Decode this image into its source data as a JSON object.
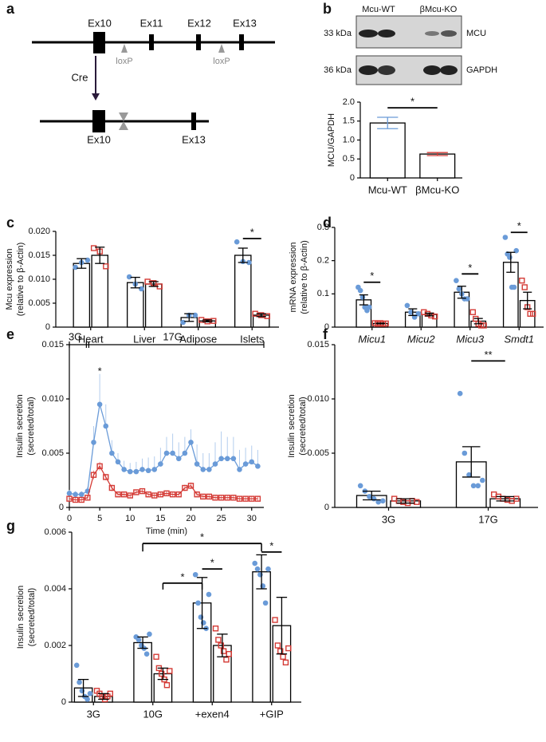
{
  "diagram": {
    "panel": "a",
    "exons_top": [
      "Ex10",
      "Ex11",
      "Ex12",
      "Ex13"
    ],
    "loxp": [
      "loxP",
      "loxP"
    ],
    "cre": "Cre",
    "exons_bottom": [
      "Ex10",
      "Ex13"
    ]
  },
  "blot": {
    "panel": "b",
    "lanes": [
      "Mcu-WT",
      "βMcu-KO"
    ],
    "bands": [
      {
        "size": "33 kDa",
        "protein": "MCU"
      },
      {
        "size": "36 kDa",
        "protein": "GAPDH"
      }
    ]
  },
  "chart_data": [
    {
      "type": "bar",
      "ylabel": [
        "MCU/GAPDH"
      ],
      "categories": [
        "Mcu-WT",
        "βMcu-KO"
      ],
      "series": [
        {
          "colors": [
            "#6a9bd8",
            "#d43b36"
          ],
          "values": [
            1.45,
            0.63
          ],
          "errors": [
            0.15,
            0.04
          ]
        }
      ],
      "ylim": [
        0,
        2
      ],
      "yticks": [
        0,
        0.5,
        {
          "value": 1,
          "label": "1.0"
        },
        1.5,
        {
          "value": 2,
          "label": "2.0"
        }
      ],
      "annotations": [
        "*"
      ]
    },
    {
      "type": "bar",
      "panel": "c",
      "ylabel": [
        "Mcu expression",
        "(relative to β-Actin)"
      ],
      "categories": [
        "Heart",
        "Liver",
        "Adipose",
        "Islets"
      ],
      "series": [
        {
          "color": "#6a9bd8",
          "marker": "circle",
          "values": [
            0.0133,
            0.0093,
            0.002,
            0.015
          ],
          "errors": [
            0.001,
            0.0011,
            0.0008,
            0.0015
          ],
          "points": [
            [
              0.0125,
              0.0135,
              0.014
            ],
            [
              0.0105,
              0.009,
              0.008
            ],
            [
              0.001,
              0.0025,
              0.0025
            ],
            [
              0.0178,
              0.0137,
              0.0135
            ]
          ]
        },
        {
          "color": "#d43b36",
          "marker": "square",
          "values": [
            0.015,
            0.009,
            0.0013,
            0.0025
          ],
          "errors": [
            0.0017,
            0.0005,
            0.0002,
            0.0003
          ],
          "points": [
            [
              0.0165,
              0.0158,
              0.0127
            ],
            [
              0.0095,
              0.0092,
              0.0085
            ],
            [
              0.0015,
              0.0012,
              0.0013
            ],
            [
              0.0028,
              0.0025,
              0.0023
            ]
          ]
        }
      ],
      "ylim": [
        0,
        0.02
      ],
      "yticks": [
        0,
        0.005,
        {
          "value": 0.01,
          "label": "0.010"
        },
        0.015,
        {
          "value": 0.02,
          "label": "0.020"
        }
      ],
      "annotations": [
        "*"
      ]
    },
    {
      "type": "bar",
      "panel": "d",
      "italic_categories": true,
      "ylabel": [
        "mRNA expression",
        "(relative to β-Actin)"
      ],
      "categories": [
        "Micu1",
        "Micu2",
        "Micu3",
        "Smdt1"
      ],
      "series": [
        {
          "color": "#6a9bd8",
          "marker": "circle",
          "values": [
            0.082,
            0.045,
            0.105,
            0.195
          ],
          "errors": [
            0.015,
            0.01,
            0.018,
            0.03
          ],
          "points": [
            [
              0.12,
              0.11,
              0.09,
              0.06,
              0.05,
              0.06
            ],
            [
              0.065,
              0.045,
              0.03,
              0.04
            ],
            [
              0.14,
              0.115,
              0.1,
              0.085,
              0.085
            ],
            [
              0.27,
              0.22,
              0.21,
              0.12,
              0.12,
              0.23
            ]
          ]
        },
        {
          "color": "#d43b36",
          "marker": "square",
          "values": [
            0.011,
            0.038,
            0.018,
            0.08
          ],
          "errors": [
            0.001,
            0.004,
            0.008,
            0.025
          ],
          "points": [
            [
              0.012,
              0.01,
              0.012,
              0.01,
              0.011
            ],
            [
              0.045,
              0.04,
              0.035,
              0.032
            ],
            [
              0.045,
              0.025,
              0.01,
              0.005,
              0.005
            ],
            [
              0.14,
              0.12,
              0.06,
              0.04,
              0.04
            ]
          ]
        }
      ],
      "ylim": [
        0,
        0.3
      ],
      "yticks": [
        0,
        0.1,
        0.2,
        0.3
      ],
      "annotations": [
        "*",
        "*",
        "*"
      ]
    },
    {
      "type": "line",
      "panel": "e",
      "ylabel": [
        "Insulin secretion",
        "(secreted/total)"
      ],
      "xlabel": "Time (min)",
      "x": [
        0,
        1,
        2,
        3,
        4,
        5,
        6,
        7,
        8,
        9,
        10,
        11,
        12,
        13,
        14,
        15,
        16,
        17,
        18,
        19,
        20,
        21,
        22,
        23,
        24,
        25,
        26,
        27,
        28,
        29,
        30,
        31
      ],
      "series": [
        {
          "color": "#6a9bd8",
          "error_color": "#b3cdee",
          "marker": "circle",
          "values": [
            0.0013,
            0.0012,
            0.0012,
            0.0015,
            0.006,
            0.0095,
            0.0075,
            0.005,
            0.0042,
            0.0035,
            0.0033,
            0.0033,
            0.0035,
            0.0034,
            0.0035,
            0.004,
            0.005,
            0.005,
            0.0045,
            0.005,
            0.006,
            0.004,
            0.0035,
            0.0035,
            0.004,
            0.0045,
            0.0045,
            0.0045,
            0.0035,
            0.004,
            0.0042,
            0.0038
          ],
          "errors": [
            0.0003,
            0.0003,
            0.0003,
            0.0004,
            0.0015,
            0.0028,
            0.002,
            0.0012,
            0.0008,
            0.0008,
            0.0008,
            0.0009,
            0.001,
            0.0012,
            0.0012,
            0.0015,
            0.0015,
            0.0018,
            0.0015,
            0.0015,
            0.0012,
            0.0018,
            0.0015,
            0.0015,
            0.002,
            0.0025,
            0.002,
            0.002,
            0.0018,
            0.0015,
            0.0015,
            0.0015
          ]
        },
        {
          "color": "#d43b36",
          "error_color": "#e98f8b",
          "marker": "square",
          "values": [
            0.0008,
            0.0007,
            0.0007,
            0.0009,
            0.003,
            0.0038,
            0.0028,
            0.0018,
            0.0012,
            0.0012,
            0.0011,
            0.0014,
            0.0015,
            0.0012,
            0.0011,
            0.0012,
            0.0013,
            0.0012,
            0.0012,
            0.0018,
            0.002,
            0.0012,
            0.001,
            0.001,
            0.0009,
            0.0009,
            0.0009,
            0.0009,
            0.0008,
            0.0008,
            0.0008,
            0.0008
          ],
          "errors": [
            0.0002,
            0.0002,
            0.0002,
            0.0002,
            0.0004,
            0.0004,
            0.0003,
            0.0003,
            0.0002,
            0.0002,
            0.0002,
            0.0002,
            0.0002,
            0.0002,
            0.0002,
            0.0002,
            0.0002,
            0.0002,
            0.0002,
            0.0003,
            0.0003,
            0.0002,
            0.0002,
            0.0002,
            0.0002,
            0.0002,
            0.0002,
            0.0002,
            0.0002,
            0.0002,
            0.0002,
            0.0002
          ]
        }
      ],
      "xlim": [
        0,
        32
      ],
      "xticks": [
        0,
        5,
        10,
        15,
        20,
        25,
        30
      ],
      "ylim": [
        0,
        0.015
      ],
      "yticks": [
        0,
        0.005,
        {
          "value": 0.01,
          "label": "0.010"
        },
        0.015
      ],
      "annotations": [
        "3G",
        "17G",
        "*"
      ]
    },
    {
      "type": "bar",
      "panel": "f",
      "ylabel": [
        "Insulin secretion",
        "(secreted/total)"
      ],
      "categories": [
        "3G",
        "17G"
      ],
      "series": [
        {
          "color": "#6a9bd8",
          "marker": "circle",
          "values": [
            0.0011,
            0.0042
          ],
          "errors": [
            0.0004,
            0.0014
          ],
          "points": [
            [
              0.002,
              0.0015,
              0.001,
              0.0008,
              0.0005,
              0.0006
            ],
            [
              0.0105,
              0.005,
              0.003,
              0.002,
              0.002,
              0.0025
            ]
          ]
        },
        {
          "color": "#d43b36",
          "marker": "square",
          "values": [
            0.0006,
            0.0008
          ],
          "errors": [
            0.0002,
            0.0002
          ],
          "points": [
            [
              0.0008,
              0.0006,
              0.0005,
              0.0004,
              0.0006,
              0.0005
            ],
            [
              0.0012,
              0.001,
              0.0008,
              0.0007,
              0.0006,
              0.0008
            ]
          ]
        }
      ],
      "ylim": [
        0,
        0.015
      ],
      "yticks": [
        0,
        0.005,
        {
          "value": 0.01,
          "label": "0.010"
        },
        0.015
      ],
      "annotations": [
        "**"
      ]
    },
    {
      "type": "bar",
      "panel": "g",
      "ylabel": [
        "Insulin secretion",
        "(secreted/total)"
      ],
      "categories": [
        "3G",
        "10G",
        "+exen4",
        "+GIP"
      ],
      "series": [
        {
          "color": "#6a9bd8",
          "marker": "circle",
          "values": [
            0.0005,
            0.0021,
            0.0035,
            0.0046
          ],
          "errors": [
            0.0003,
            0.0002,
            0.0009,
            0.0006
          ],
          "points": [
            [
              0.0013,
              0.0007,
              0.0004,
              0.0002,
              0.0001,
              0.0003
            ],
            [
              0.0023,
              0.0022,
              0.002,
              0.0019,
              0.0017,
              0.0024
            ],
            [
              0.0045,
              0.0035,
              0.003,
              0.0028,
              0.0026,
              0.0038
            ],
            [
              0.0049,
              0.0047,
              0.0045,
              0.0041,
              0.0035,
              0.0047
            ]
          ]
        },
        {
          "color": "#d43b36",
          "marker": "square",
          "values": [
            0.0002,
            0.001,
            0.002,
            0.0027
          ],
          "errors": [
            0.0001,
            0.0002,
            0.0004,
            0.001
          ],
          "points": [
            [
              0.0004,
              0.0003,
              0.0002,
              0.0001,
              0.0002,
              0.0003
            ],
            [
              0.0016,
              0.0012,
              0.001,
              0.0008,
              0.0006,
              0.0011
            ],
            [
              0.0026,
              0.0022,
              0.002,
              0.0018,
              0.0015,
              0.0017
            ],
            [
              0.0029,
              0.002,
              0.0018,
              0.0016,
              0.0014,
              0.0019
            ]
          ]
        }
      ],
      "ylim": [
        0,
        0.006
      ],
      "yticks": [
        0,
        0.002,
        0.004,
        0.006
      ],
      "annotations": [
        "*",
        "*",
        "*",
        "*"
      ]
    }
  ]
}
